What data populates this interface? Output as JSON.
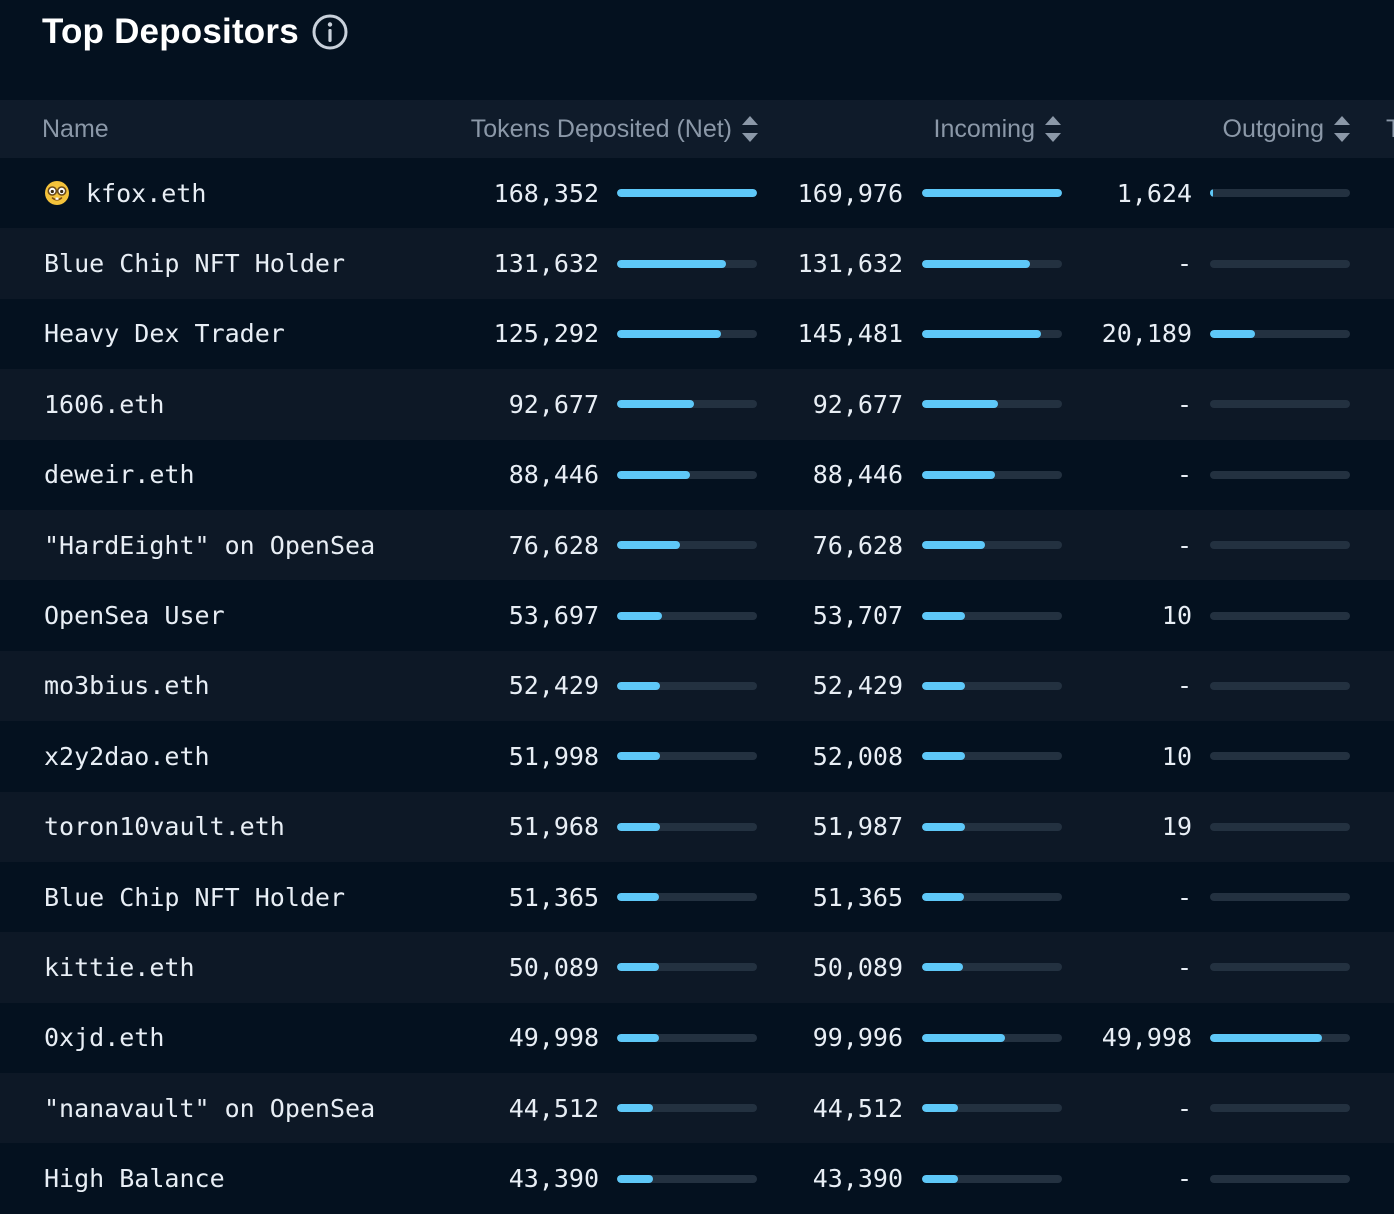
{
  "panel": {
    "title": "Top Depositors"
  },
  "columns": {
    "name": "Name",
    "tokens": "Tokens Deposited (Net)",
    "incoming": "Incoming",
    "outgoing": "Outgoing",
    "extra": "T"
  },
  "colors": {
    "accent": "#5ec8f8",
    "track": "#233140",
    "background": "#04111f",
    "header": "#0f1b2a"
  },
  "rows": [
    {
      "name": "kfox.eth",
      "emoji": "nerd-face-icon",
      "tokens": "168,352",
      "incoming": "169,976",
      "outgoing": "1,624",
      "tokens_pct": 100,
      "incoming_pct": 100,
      "outgoing_pct": 2
    },
    {
      "name": "Blue Chip NFT Holder",
      "tokens": "131,632",
      "incoming": "131,632",
      "outgoing": "-",
      "tokens_pct": 78,
      "incoming_pct": 77,
      "outgoing_pct": 0
    },
    {
      "name": "Heavy Dex Trader",
      "tokens": "125,292",
      "incoming": "145,481",
      "outgoing": "20,189",
      "tokens_pct": 74,
      "incoming_pct": 85,
      "outgoing_pct": 32
    },
    {
      "name": "1606.eth",
      "tokens": "92,677",
      "incoming": "92,677",
      "outgoing": "-",
      "tokens_pct": 55,
      "incoming_pct": 54,
      "outgoing_pct": 0
    },
    {
      "name": "deweir.eth",
      "tokens": "88,446",
      "incoming": "88,446",
      "outgoing": "-",
      "tokens_pct": 52,
      "incoming_pct": 52,
      "outgoing_pct": 0
    },
    {
      "name": "\"HardEight\" on OpenSea",
      "tokens": "76,628",
      "incoming": "76,628",
      "outgoing": "-",
      "tokens_pct": 45,
      "incoming_pct": 45,
      "outgoing_pct": 0
    },
    {
      "name": "OpenSea User",
      "tokens": "53,697",
      "incoming": "53,707",
      "outgoing": "10",
      "tokens_pct": 32,
      "incoming_pct": 31,
      "outgoing_pct": 0
    },
    {
      "name": "mo3bius.eth",
      "tokens": "52,429",
      "incoming": "52,429",
      "outgoing": "-",
      "tokens_pct": 31,
      "incoming_pct": 31,
      "outgoing_pct": 0
    },
    {
      "name": "x2y2dao.eth",
      "tokens": "51,998",
      "incoming": "52,008",
      "outgoing": "10",
      "tokens_pct": 31,
      "incoming_pct": 31,
      "outgoing_pct": 0
    },
    {
      "name": "toron10vault.eth",
      "tokens": "51,968",
      "incoming": "51,987",
      "outgoing": "19",
      "tokens_pct": 31,
      "incoming_pct": 31,
      "outgoing_pct": 0
    },
    {
      "name": "Blue Chip NFT Holder",
      "tokens": "51,365",
      "incoming": "51,365",
      "outgoing": "-",
      "tokens_pct": 30,
      "incoming_pct": 30,
      "outgoing_pct": 0
    },
    {
      "name": "kittie.eth",
      "tokens": "50,089",
      "incoming": "50,089",
      "outgoing": "-",
      "tokens_pct": 30,
      "incoming_pct": 29,
      "outgoing_pct": 0
    },
    {
      "name": "0xjd.eth",
      "tokens": "49,998",
      "incoming": "99,996",
      "outgoing": "49,998",
      "tokens_pct": 30,
      "incoming_pct": 59,
      "outgoing_pct": 80
    },
    {
      "name": "\"nanavault\" on OpenSea",
      "tokens": "44,512",
      "incoming": "44,512",
      "outgoing": "-",
      "tokens_pct": 26,
      "incoming_pct": 26,
      "outgoing_pct": 0
    },
    {
      "name": "High Balance",
      "tokens": "43,390",
      "incoming": "43,390",
      "outgoing": "-",
      "tokens_pct": 26,
      "incoming_pct": 26,
      "outgoing_pct": 0
    }
  ]
}
